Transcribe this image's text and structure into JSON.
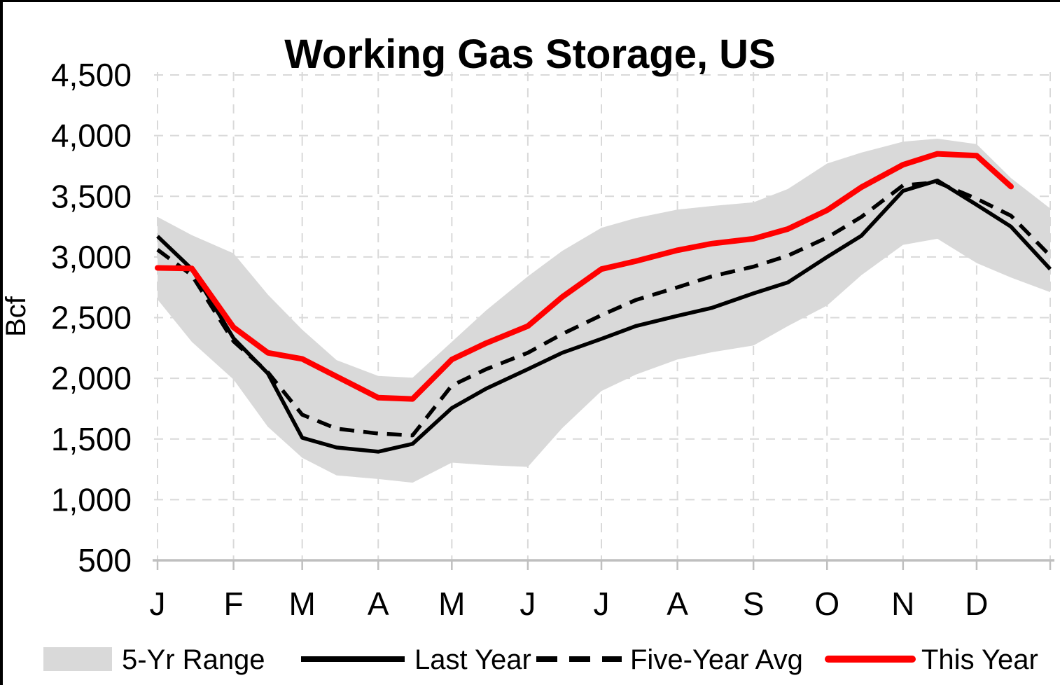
{
  "chart_data": {
    "type": "line",
    "title": "Working Gas Storage, US",
    "ylabel": "Bcf",
    "y_axis": {
      "min": 500,
      "max": 4500,
      "step": 500,
      "tick_labels": [
        "500",
        "1,000",
        "1,500",
        "2,000",
        "2,500",
        "3,000",
        "3,500",
        "4,000",
        "4,500"
      ],
      "grid": true
    },
    "x_axis": {
      "tick_labels": [
        "J",
        "F",
        "M",
        "A",
        "M",
        "J",
        "J",
        "A",
        "S",
        "O",
        "N",
        "D"
      ],
      "month_start_days": [
        1,
        32,
        60,
        91,
        121,
        152,
        182,
        213,
        244,
        274,
        305,
        335
      ],
      "days_in_year": 365,
      "grid": true
    },
    "legend": {
      "position": "bottom",
      "items": [
        {
          "label": "5-Yr Range",
          "swatch": "band",
          "color": "#D9D9D9"
        },
        {
          "label": "Last Year",
          "swatch": "solid-line",
          "color": "#000000"
        },
        {
          "label": "Five-Year Avg",
          "swatch": "dashed-line",
          "color": "#000000"
        },
        {
          "label": "This Year",
          "swatch": "solid-line",
          "color": "#FF0000"
        }
      ]
    },
    "colors": {
      "band": "#D9D9D9",
      "last_year": "#000000",
      "five_year_avg": "#000000",
      "this_year": "#FF0000",
      "gridline": "#D9D9D9",
      "axis": "#BFBFBF"
    },
    "days": [
      1,
      15,
      32,
      46,
      60,
      74,
      91,
      105,
      121,
      135,
      152,
      166,
      182,
      196,
      213,
      227,
      244,
      258,
      274,
      288,
      305,
      319,
      335,
      349,
      365
    ],
    "series": [
      {
        "name": "5-Yr Range",
        "type": "band",
        "max": [
          3330,
          3180,
          3030,
          2690,
          2400,
          2150,
          2020,
          2005,
          2300,
          2560,
          2840,
          3050,
          3240,
          3320,
          3390,
          3420,
          3450,
          3560,
          3770,
          3860,
          3950,
          3975,
          3930,
          3650,
          3400
        ],
        "min": [
          2650,
          2300,
          1990,
          1600,
          1345,
          1200,
          1170,
          1140,
          1305,
          1285,
          1270,
          1590,
          1895,
          2030,
          2155,
          2215,
          2270,
          2430,
          2600,
          2850,
          3100,
          3150,
          2950,
          2830,
          2710
        ]
      },
      {
        "name": "Last Year",
        "type": "line",
        "style": "solid",
        "values": [
          3170,
          2900,
          2330,
          2040,
          1510,
          1430,
          1395,
          1460,
          1755,
          1915,
          2075,
          2210,
          2325,
          2430,
          2515,
          2580,
          2700,
          2790,
          3000,
          3175,
          3545,
          3630,
          3430,
          3250,
          2900
        ]
      },
      {
        "name": "Five-Year Avg",
        "type": "line",
        "style": "dashed",
        "values": [
          3060,
          2850,
          2305,
          2050,
          1700,
          1585,
          1545,
          1530,
          1940,
          2075,
          2210,
          2365,
          2520,
          2645,
          2750,
          2840,
          2920,
          3010,
          3160,
          3330,
          3590,
          3615,
          3480,
          3340,
          3010
        ]
      },
      {
        "name": "This Year",
        "type": "line",
        "style": "solid",
        "values": [
          2910,
          2905,
          2420,
          2210,
          2160,
          2015,
          1840,
          1830,
          2155,
          2290,
          2430,
          2670,
          2900,
          2965,
          3055,
          3110,
          3150,
          3230,
          3385,
          3575,
          3760,
          3850,
          3835,
          3580,
          null
        ]
      }
    ]
  }
}
